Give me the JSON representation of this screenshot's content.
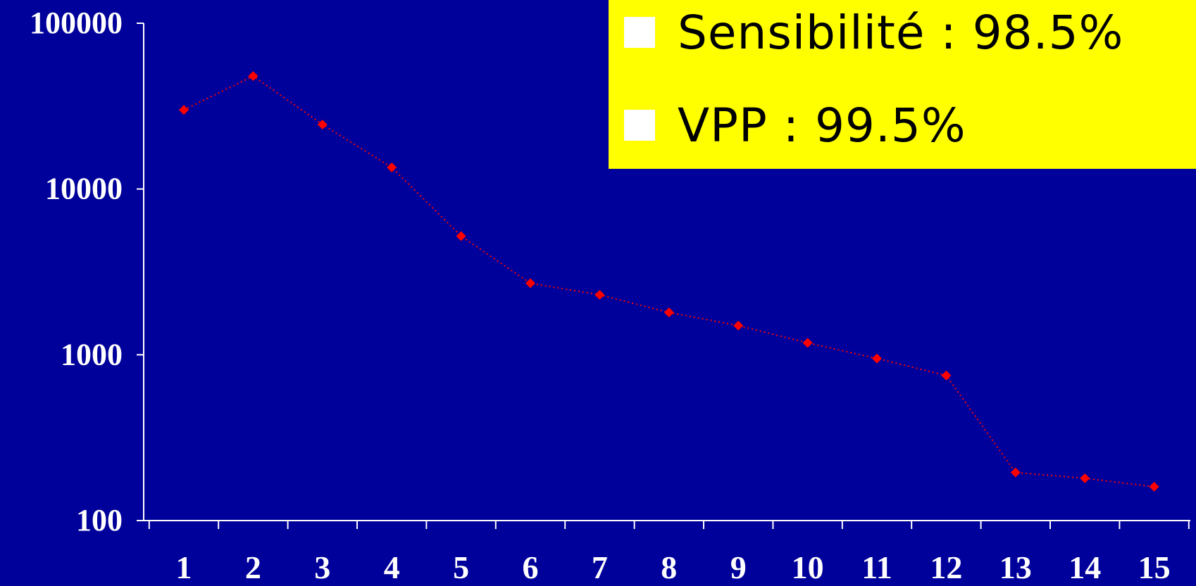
{
  "legend": {
    "items": [
      {
        "label": "Sensibilité : 98.5%"
      },
      {
        "label": "VPP : 99.5%"
      }
    ],
    "background": "#ffff00",
    "bullet_color": "#ffffff"
  },
  "colors": {
    "background": "#00009a",
    "axis": "#ffffff",
    "series": "#ff0000"
  },
  "chart_data": {
    "type": "line",
    "title": "",
    "xlabel": "",
    "ylabel": "",
    "yscale": "log",
    "ylim": [
      100,
      100000
    ],
    "yticks": [
      100000,
      10000,
      1000,
      100
    ],
    "ytick_labels": [
      "100000",
      "10000",
      "1000",
      "100"
    ],
    "x": [
      1,
      2,
      3,
      4,
      5,
      6,
      7,
      8,
      9,
      10,
      11,
      12,
      13,
      14,
      15
    ],
    "xtick_labels": [
      "1",
      "2",
      "3",
      "4",
      "5",
      "6",
      "7",
      "8",
      "9",
      "10",
      "11",
      "12",
      "13",
      "14",
      "15"
    ],
    "series": [
      {
        "values": [
          30000,
          48000,
          24500,
          13500,
          5200,
          2700,
          2300,
          1800,
          1500,
          1180,
          950,
          750,
          195,
          180,
          160
        ],
        "line_style": "dotted",
        "marker": "diamond"
      }
    ],
    "grid": false
  }
}
